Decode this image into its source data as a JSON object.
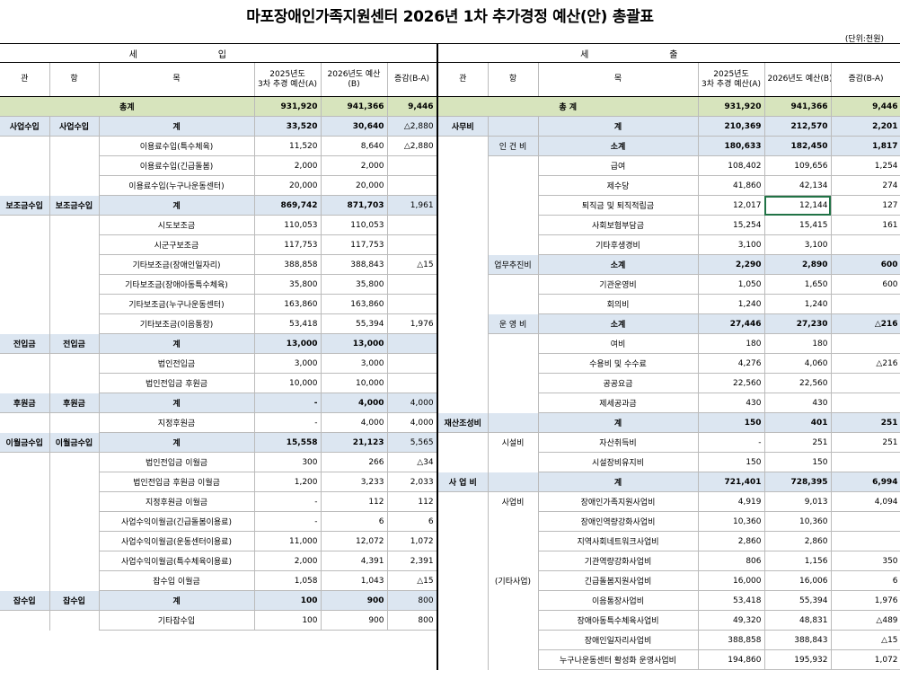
{
  "title": "마포장애인가족지원센터 2026년 1차 추가경정 예산(안) 총괄표",
  "unit": "(단위:천원)",
  "income": {
    "section": "세입",
    "headers": [
      "관",
      "항",
      "목",
      "2025년도\n3차 추경 예산(A)",
      "2026년도 예산\n(B)",
      "증감(B-A)"
    ],
    "total": {
      "label": "총계",
      "a": "931,920",
      "b": "941,366",
      "d": "9,446"
    },
    "groups": [
      {
        "gwan": "사업수입",
        "hang": "사업수입",
        "sub": {
          "a": "33,520",
          "b": "30,640",
          "d": "△2,880"
        },
        "items": [
          [
            "이용료수입(특수체육)",
            "11,520",
            "8,640",
            "△2,880"
          ],
          [
            "이용료수입(긴급돌봄)",
            "2,000",
            "2,000",
            ""
          ],
          [
            "이용료수입(누구나운동센터)",
            "20,000",
            "20,000",
            ""
          ]
        ]
      },
      {
        "gwan": "보조금수입",
        "hang": "보조금수입",
        "sub": {
          "a": "869,742",
          "b": "871,703",
          "d": "1,961"
        },
        "items": [
          [
            "시도보조금",
            "110,053",
            "110,053",
            ""
          ],
          [
            "시군구보조금",
            "117,753",
            "117,753",
            ""
          ],
          [
            "기타보조금(장애인일자리)",
            "388,858",
            "388,843",
            "△15"
          ],
          [
            "기타보조금(장애아동특수체육)",
            "35,800",
            "35,800",
            ""
          ],
          [
            "기타보조금(누구나운동센터)",
            "163,860",
            "163,860",
            ""
          ],
          [
            "기타보조금(이음통장)",
            "53,418",
            "55,394",
            "1,976"
          ]
        ]
      },
      {
        "gwan": "전입금",
        "hang": "전입금",
        "sub": {
          "a": "13,000",
          "b": "13,000",
          "d": ""
        },
        "items": [
          [
            "법인전입금",
            "3,000",
            "3,000",
            ""
          ],
          [
            "법인전입금 후원금",
            "10,000",
            "10,000",
            ""
          ]
        ]
      },
      {
        "gwan": "후원금",
        "hang": "후원금",
        "sub": {
          "a": "-",
          "b": "4,000",
          "d": "4,000"
        },
        "items": [
          [
            "지정후원금",
            "-",
            "4,000",
            "4,000"
          ]
        ]
      },
      {
        "gwan": "이월금수입",
        "hang": "이월금수입",
        "sub": {
          "a": "15,558",
          "b": "21,123",
          "d": "5,565"
        },
        "items": [
          [
            "법인전입금 이월금",
            "300",
            "266",
            "△34"
          ],
          [
            "법인전입금 후원금 이월금",
            "1,200",
            "3,233",
            "2,033"
          ],
          [
            "지정후원금 이월금",
            "-",
            "112",
            "112"
          ],
          [
            "사업수익이월금(긴급돌봄이용료)",
            "-",
            "6",
            "6"
          ],
          [
            "사업수익이월금(운동센터이용료)",
            "11,000",
            "12,072",
            "1,072"
          ],
          [
            "사업수익이월금(특수체육이용료)",
            "2,000",
            "4,391",
            "2,391"
          ],
          [
            "잡수입 이월금",
            "1,058",
            "1,043",
            "△15"
          ]
        ]
      },
      {
        "gwan": "잡수입",
        "hang": "잡수입",
        "sub": {
          "a": "100",
          "b": "900",
          "d": "800"
        },
        "items": [
          [
            "기타잡수입",
            "100",
            "900",
            "800"
          ]
        ]
      }
    ],
    "sub_label": "계"
  },
  "expense": {
    "section": "세출",
    "headers": [
      "관",
      "항",
      "목",
      "2025년도\n3차 추경 예산(A)",
      "2026년도 예산(B)",
      "증감(B-A)"
    ],
    "total": {
      "label": "총 계",
      "a": "931,920",
      "b": "941,366",
      "d": "9,446"
    },
    "rows": [
      [
        "사무비",
        "",
        "계",
        "210,369",
        "212,570",
        "2,201",
        "b"
      ],
      [
        "",
        "인 건 비",
        "소계",
        "180,633",
        "182,450",
        "1,817",
        "h"
      ],
      [
        "",
        "",
        "급여",
        "108,402",
        "109,656",
        "1,254",
        ""
      ],
      [
        "",
        "",
        "제수당",
        "41,860",
        "42,134",
        "274",
        ""
      ],
      [
        "",
        "",
        "퇴직금 및 퇴직적립금",
        "12,017",
        "12,144",
        "127",
        "sel"
      ],
      [
        "",
        "",
        "사회보험부담금",
        "15,254",
        "15,415",
        "161",
        ""
      ],
      [
        "",
        "",
        "기타후생경비",
        "3,100",
        "3,100",
        "",
        ""
      ],
      [
        "",
        "업무추진비",
        "소계",
        "2,290",
        "2,890",
        "600",
        "h"
      ],
      [
        "",
        "",
        "기관운영비",
        "1,050",
        "1,650",
        "600",
        ""
      ],
      [
        "",
        "",
        "회의비",
        "1,240",
        "1,240",
        "",
        ""
      ],
      [
        "",
        "운 영 비",
        "소계",
        "27,446",
        "27,230",
        "△216",
        "h"
      ],
      [
        "",
        "",
        "여비",
        "180",
        "180",
        "",
        ""
      ],
      [
        "",
        "",
        "수용비 및 수수료",
        "4,276",
        "4,060",
        "△216",
        ""
      ],
      [
        "",
        "",
        "공공요금",
        "22,560",
        "22,560",
        "",
        ""
      ],
      [
        "",
        "",
        "제세공과금",
        "430",
        "430",
        "",
        ""
      ],
      [
        "재산조성비",
        "",
        "계",
        "150",
        "401",
        "251",
        "b"
      ],
      [
        "",
        "시설비",
        "자산취득비",
        "-",
        "251",
        "251",
        ""
      ],
      [
        "",
        "",
        "시설장비유지비",
        "150",
        "150",
        "",
        ""
      ],
      [
        "사 업 비",
        "",
        "계",
        "721,401",
        "728,395",
        "6,994",
        "b"
      ],
      [
        "",
        "사업비",
        "장애인가족지원사업비",
        "4,919",
        "9,013",
        "4,094",
        ""
      ],
      [
        "",
        "",
        "장애인역량강화사업비",
        "10,360",
        "10,360",
        "",
        ""
      ],
      [
        "",
        "",
        "지역사회네트워크사업비",
        "2,860",
        "2,860",
        "",
        ""
      ],
      [
        "",
        "",
        "기관역량강화사업비",
        "806",
        "1,156",
        "350",
        ""
      ],
      [
        "",
        "(기타사업)",
        "긴급돌봄지원사업비",
        "16,000",
        "16,006",
        "6",
        ""
      ],
      [
        "",
        "",
        "이음통장사업비",
        "53,418",
        "55,394",
        "1,976",
        ""
      ],
      [
        "",
        "",
        "장애아동특수체육사업비",
        "49,320",
        "48,831",
        "△489",
        ""
      ],
      [
        "",
        "",
        "장애인일자리사업비",
        "388,858",
        "388,843",
        "△15",
        ""
      ],
      [
        "",
        "",
        "누구나운동센터 활성화 운영사업비",
        "194,860",
        "195,932",
        "1,072",
        ""
      ]
    ]
  }
}
